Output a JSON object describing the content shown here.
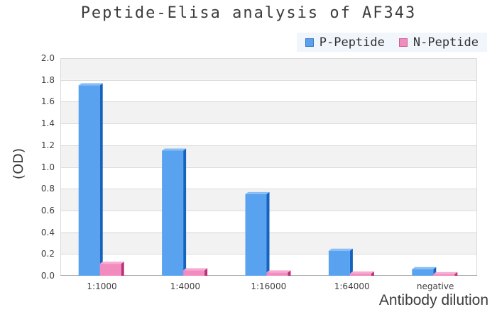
{
  "title": "Peptide-Elisa analysis of AF343",
  "legend": {
    "background": "#f1f6fc",
    "items": [
      {
        "label": "P-Peptide",
        "swatch_fill": "#58a2f0",
        "swatch_border": "#3e77c2"
      },
      {
        "label": "N-Peptide",
        "swatch_fill": "#f28cbe",
        "swatch_border": "#c6618f"
      }
    ]
  },
  "chart_data": {
    "type": "bar",
    "title": "Peptide-Elisa analysis of AF343",
    "categories": [
      "1:1000",
      "1:4000",
      "1:16000",
      "1:64000",
      "negative"
    ],
    "series": [
      {
        "name": "P-Peptide",
        "values": [
          1.75,
          1.15,
          0.75,
          0.23,
          0.06
        ],
        "face_color": "#58a2f0",
        "side_color": "#1563be",
        "top_color": "#86bef8"
      },
      {
        "name": "N-Peptide",
        "values": [
          0.11,
          0.05,
          0.03,
          0.02,
          0.015
        ],
        "face_color": "#f28cbe",
        "side_color": "#bc3076",
        "top_color": "#f7abd3"
      }
    ],
    "xlabel": "Antibody dilution",
    "ylabel": "(OD)",
    "ylim": [
      0,
      2
    ],
    "ytick_step": 0.2,
    "yticks": [
      "0.0",
      "0.2",
      "0.4",
      "0.6",
      "0.8",
      "1.0",
      "1.2",
      "1.4",
      "1.6",
      "1.8",
      "2.0"
    ],
    "legend_position": "top-right",
    "grid": "horizontal",
    "gridline_color": "#dbdbdb",
    "axis_line_color": "#a9a9a9",
    "band_color": "#f2f2f2",
    "pseudo_3d": true
  }
}
